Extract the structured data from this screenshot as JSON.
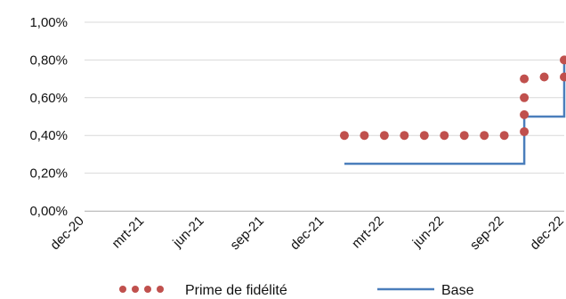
{
  "chart_data": {
    "type": "line",
    "title": "",
    "xlabel": "",
    "ylabel": "",
    "x_tick_labels": [
      "dec-20",
      "mrt-21",
      "jun-21",
      "sep-21",
      "dec-21",
      "mrt-22",
      "jun-22",
      "sep-22",
      "dec-22"
    ],
    "y_tick_labels": [
      "0,00%",
      "0,20%",
      "0,40%",
      "0,60%",
      "0,80%",
      "1,00%"
    ],
    "y_ticks": [
      0,
      0.2,
      0.4,
      0.6,
      0.8,
      1.0
    ],
    "ylim": [
      0,
      1.0
    ],
    "x_range_months": [
      "2020-12",
      "2022-12"
    ],
    "grid": true,
    "legend": "bottom",
    "series": [
      {
        "name": "Prime de fidélité",
        "style": "dotted",
        "color": "#c0504d",
        "points": [
          {
            "x": "2022-01",
            "y": 0.4
          },
          {
            "x": "2022-02",
            "y": 0.4
          },
          {
            "x": "2022-03",
            "y": 0.4
          },
          {
            "x": "2022-04",
            "y": 0.4
          },
          {
            "x": "2022-05",
            "y": 0.4
          },
          {
            "x": "2022-06",
            "y": 0.4
          },
          {
            "x": "2022-07",
            "y": 0.4
          },
          {
            "x": "2022-08",
            "y": 0.4
          },
          {
            "x": "2022-09",
            "y": 0.4
          },
          {
            "x": "2022-10",
            "y": 0.42
          },
          {
            "x": "2022-10",
            "y": 0.51
          },
          {
            "x": "2022-10",
            "y": 0.6
          },
          {
            "x": "2022-10",
            "y": 0.7
          },
          {
            "x": "2022-11",
            "y": 0.71
          },
          {
            "x": "2022-12",
            "y": 0.71
          },
          {
            "x": "2022-12",
            "y": 0.8
          }
        ]
      },
      {
        "name": "Base",
        "style": "solid",
        "color": "#4a7ebb",
        "points": [
          {
            "x": "2022-01",
            "y": 0.25
          },
          {
            "x": "2022-10",
            "y": 0.25
          },
          {
            "x": "2022-10",
            "y": 0.5
          },
          {
            "x": "2022-12",
            "y": 0.5
          },
          {
            "x": "2022-12",
            "y": 0.8
          }
        ]
      }
    ]
  }
}
